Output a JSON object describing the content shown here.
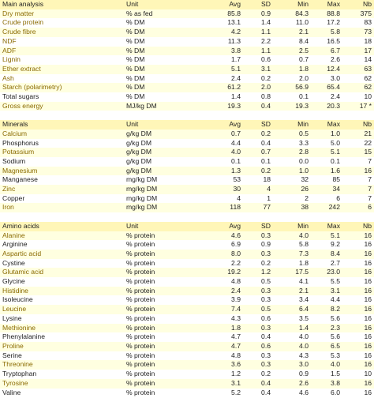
{
  "columns": {
    "unit": "Unit",
    "avg": "Avg",
    "sd": "SD",
    "min": "Min",
    "max": "Max",
    "nb": "Nb"
  },
  "sections": [
    {
      "title": "Main analysis",
      "rows": [
        {
          "name": "Dry matter",
          "unit": "% as fed",
          "avg": "85.8",
          "sd": "0.9",
          "min": "84.3",
          "max": "88.8",
          "nb": "375",
          "hl": true
        },
        {
          "name": "Crude protein",
          "unit": "% DM",
          "avg": "13.1",
          "sd": "1.4",
          "min": "11.0",
          "max": "17.2",
          "nb": "83",
          "hl": true
        },
        {
          "name": "Crude fibre",
          "unit": "% DM",
          "avg": "4.2",
          "sd": "1.1",
          "min": "2.1",
          "max": "5.8",
          "nb": "73",
          "hl": true
        },
        {
          "name": "NDF",
          "unit": "% DM",
          "avg": "11.3",
          "sd": "2.2",
          "min": "8.4",
          "max": "16.5",
          "nb": "18",
          "hl": true
        },
        {
          "name": "ADF",
          "unit": "% DM",
          "avg": "3.8",
          "sd": "1.1",
          "min": "2.5",
          "max": "6.7",
          "nb": "17",
          "hl": true
        },
        {
          "name": "Lignin",
          "unit": "% DM",
          "avg": "1.7",
          "sd": "0.6",
          "min": "0.7",
          "max": "2.6",
          "nb": "14",
          "hl": true
        },
        {
          "name": "Ether extract",
          "unit": "% DM",
          "avg": "5.1",
          "sd": "3.1",
          "min": "1.8",
          "max": "12.4",
          "nb": "63",
          "hl": true
        },
        {
          "name": "Ash",
          "unit": "% DM",
          "avg": "2.4",
          "sd": "0.2",
          "min": "2.0",
          "max": "3.0",
          "nb": "62",
          "hl": true
        },
        {
          "name": "Starch (polarimetry)",
          "unit": "% DM",
          "avg": "61.2",
          "sd": "2.0",
          "min": "56.9",
          "max": "65.4",
          "nb": "62",
          "hl": true
        },
        {
          "name": "Total sugars",
          "unit": "% DM",
          "avg": "1.4",
          "sd": "0.8",
          "min": "0.1",
          "max": "2.4",
          "nb": "10",
          "hl": false
        },
        {
          "name": "Gross energy",
          "unit": "MJ/kg DM",
          "avg": "19.3",
          "sd": "0.4",
          "min": "19.3",
          "max": "20.3",
          "nb": "17 *",
          "hl": true
        }
      ]
    },
    {
      "title": "Minerals",
      "rows": [
        {
          "name": "Calcium",
          "unit": "g/kg DM",
          "avg": "0.7",
          "sd": "0.2",
          "min": "0.5",
          "max": "1.0",
          "nb": "21",
          "hl": true
        },
        {
          "name": "Phosphorus",
          "unit": "g/kg DM",
          "avg": "4.4",
          "sd": "0.4",
          "min": "3.3",
          "max": "5.0",
          "nb": "22",
          "hl": false
        },
        {
          "name": "Potassium",
          "unit": "g/kg DM",
          "avg": "4.0",
          "sd": "0.7",
          "min": "2.8",
          "max": "5.1",
          "nb": "15",
          "hl": true
        },
        {
          "name": "Sodium",
          "unit": "g/kg DM",
          "avg": "0.1",
          "sd": "0.1",
          "min": "0.0",
          "max": "0.1",
          "nb": "7",
          "hl": false
        },
        {
          "name": "Magnesium",
          "unit": "g/kg DM",
          "avg": "1.3",
          "sd": "0.2",
          "min": "1.0",
          "max": "1.6",
          "nb": "16",
          "hl": true
        },
        {
          "name": "Manganese",
          "unit": "mg/kg DM",
          "avg": "53",
          "sd": "18",
          "min": "32",
          "max": "85",
          "nb": "7",
          "hl": false
        },
        {
          "name": "Zinc",
          "unit": "mg/kg DM",
          "avg": "30",
          "sd": "4",
          "min": "26",
          "max": "34",
          "nb": "7",
          "hl": true
        },
        {
          "name": "Copper",
          "unit": "mg/kg DM",
          "avg": "4",
          "sd": "1",
          "min": "2",
          "max": "6",
          "nb": "7",
          "hl": false
        },
        {
          "name": "Iron",
          "unit": "mg/kg DM",
          "avg": "118",
          "sd": "77",
          "min": "38",
          "max": "242",
          "nb": "6",
          "hl": true
        }
      ]
    },
    {
      "title": "Amino acids",
      "rows": [
        {
          "name": "Alanine",
          "unit": "% protein",
          "avg": "4.6",
          "sd": "0.3",
          "min": "4.0",
          "max": "5.1",
          "nb": "16",
          "hl": true
        },
        {
          "name": "Arginine",
          "unit": "% protein",
          "avg": "6.9",
          "sd": "0.9",
          "min": "5.8",
          "max": "9.2",
          "nb": "16",
          "hl": false
        },
        {
          "name": "Aspartic acid",
          "unit": "% protein",
          "avg": "8.0",
          "sd": "0.3",
          "min": "7.3",
          "max": "8.4",
          "nb": "16",
          "hl": true
        },
        {
          "name": "Cystine",
          "unit": "% protein",
          "avg": "2.2",
          "sd": "0.2",
          "min": "1.8",
          "max": "2.7",
          "nb": "16",
          "hl": false
        },
        {
          "name": "Glutamic acid",
          "unit": "% protein",
          "avg": "19.2",
          "sd": "1.2",
          "min": "17.5",
          "max": "23.0",
          "nb": "16",
          "hl": true
        },
        {
          "name": "Glycine",
          "unit": "% protein",
          "avg": "4.8",
          "sd": "0.5",
          "min": "4.1",
          "max": "5.5",
          "nb": "16",
          "hl": false
        },
        {
          "name": "Histidine",
          "unit": "% protein",
          "avg": "2.4",
          "sd": "0.3",
          "min": "2.1",
          "max": "3.1",
          "nb": "16",
          "hl": true
        },
        {
          "name": "Isoleucine",
          "unit": "% protein",
          "avg": "3.9",
          "sd": "0.3",
          "min": "3.4",
          "max": "4.4",
          "nb": "16",
          "hl": false
        },
        {
          "name": "Leucine",
          "unit": "% protein",
          "avg": "7.4",
          "sd": "0.5",
          "min": "6.4",
          "max": "8.2",
          "nb": "16",
          "hl": true
        },
        {
          "name": "Lysine",
          "unit": "% protein",
          "avg": "4.3",
          "sd": "0.6",
          "min": "3.5",
          "max": "5.6",
          "nb": "16",
          "hl": false
        },
        {
          "name": "Methionine",
          "unit": "% protein",
          "avg": "1.8",
          "sd": "0.3",
          "min": "1.4",
          "max": "2.3",
          "nb": "16",
          "hl": true
        },
        {
          "name": "Phenylalanine",
          "unit": "% protein",
          "avg": "4.7",
          "sd": "0.4",
          "min": "4.0",
          "max": "5.6",
          "nb": "16",
          "hl": false
        },
        {
          "name": "Proline",
          "unit": "% protein",
          "avg": "4.7",
          "sd": "0.6",
          "min": "4.0",
          "max": "6.5",
          "nb": "16",
          "hl": true
        },
        {
          "name": "Serine",
          "unit": "% protein",
          "avg": "4.8",
          "sd": "0.3",
          "min": "4.3",
          "max": "5.3",
          "nb": "16",
          "hl": false
        },
        {
          "name": "Threonine",
          "unit": "% protein",
          "avg": "3.6",
          "sd": "0.3",
          "min": "3.0",
          "max": "4.0",
          "nb": "16",
          "hl": true
        },
        {
          "name": "Tryptophan",
          "unit": "% protein",
          "avg": "1.2",
          "sd": "0.2",
          "min": "0.9",
          "max": "1.5",
          "nb": "10",
          "hl": false
        },
        {
          "name": "Tyrosine",
          "unit": "% protein",
          "avg": "3.1",
          "sd": "0.4",
          "min": "2.6",
          "max": "3.8",
          "nb": "16",
          "hl": true
        },
        {
          "name": "Valine",
          "unit": "% protein",
          "avg": "5.2",
          "sd": "0.4",
          "min": "4.6",
          "max": "6.0",
          "nb": "16",
          "hl": false
        }
      ]
    }
  ]
}
